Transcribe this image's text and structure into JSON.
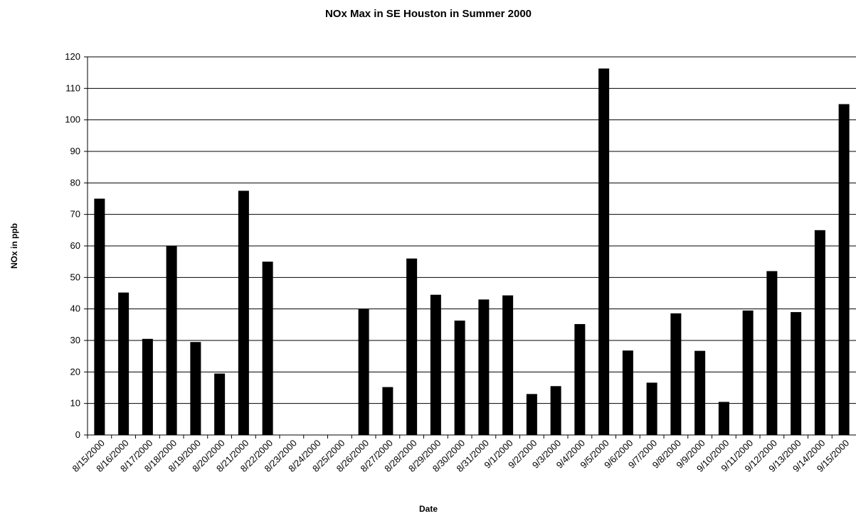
{
  "chart_data": {
    "type": "bar",
    "title": "NOx Max in SE Houston in Summer 2000",
    "x_label": "Date",
    "y_label": "NOx in ppb",
    "categories": [
      "8/15/2000",
      "8/16/2000",
      "8/17/2000",
      "8/18/2000",
      "8/19/2000",
      "8/20/2000",
      "8/21/2000",
      "8/22/2000",
      "8/23/2000",
      "8/24/2000",
      "8/25/2000",
      "8/26/2000",
      "8/27/2000",
      "8/28/2000",
      "8/29/2000",
      "8/30/2000",
      "8/31/2000",
      "9/1/2000",
      "9/2/2000",
      "9/3/2000",
      "9/4/2000",
      "9/5/2000",
      "9/6/2000",
      "9/7/2000",
      "9/8/2000",
      "9/9/2000",
      "9/10/2000",
      "9/11/2000",
      "9/12/2000",
      "9/13/2000",
      "9/14/2000",
      "9/15/2000"
    ],
    "values": [
      75,
      45.2,
      30.5,
      60,
      29.5,
      19.5,
      77.5,
      55,
      null,
      null,
      null,
      40,
      15.2,
      56,
      44.5,
      36.3,
      43,
      44.3,
      13,
      15.5,
      35.2,
      116.3,
      26.8,
      16.6,
      38.6,
      26.7,
      10.5,
      39.5,
      52,
      39,
      65,
      105
    ],
    "color": "#000000",
    "ylim": [
      0,
      120
    ],
    "yticks": [
      0,
      10,
      20,
      30,
      40,
      50,
      60,
      70,
      80,
      90,
      100,
      110,
      120
    ],
    "grid": true
  }
}
